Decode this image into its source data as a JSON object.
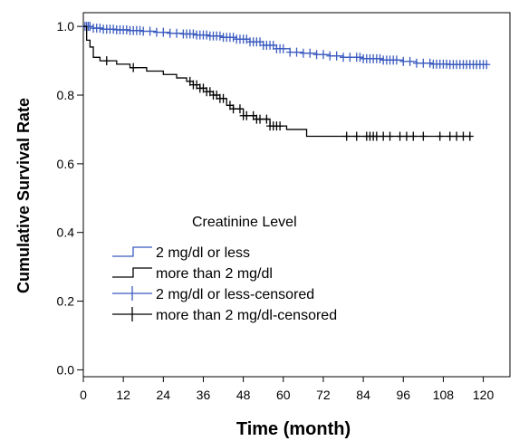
{
  "chart_data": {
    "type": "line",
    "xlabel": "Time (month)",
    "ylabel": "Cumulative Survival Rate",
    "xlim": [
      0,
      128
    ],
    "ylim": [
      -0.02,
      1.04
    ],
    "xticks": [
      0,
      12,
      24,
      36,
      48,
      60,
      72,
      84,
      96,
      108,
      120
    ],
    "yticks": [
      0.0,
      0.2,
      0.4,
      0.6,
      0.8,
      1.0
    ],
    "ytick_labels": [
      "0.0",
      "0.2",
      "0.4",
      "0.6",
      "0.8",
      "1.0"
    ],
    "legend": {
      "title": "Creatinine Level",
      "placement": "center-left",
      "entries": [
        "2 mg/dl or less",
        "more than 2 mg/dl",
        "2 mg/dl or less-censored",
        "more than 2 mg/dl-censored"
      ]
    },
    "series": [
      {
        "name": "2 mg/dl or less",
        "color": "#3b5bbf",
        "step": true,
        "x": [
          0,
          3,
          6,
          10,
          14,
          18,
          22,
          26,
          30,
          34,
          38,
          42,
          46,
          50,
          54,
          58,
          62,
          66,
          70,
          74,
          78,
          84,
          90,
          96,
          100,
          105,
          110,
          115,
          121
        ],
        "y": [
          1.0,
          0.995,
          0.992,
          0.99,
          0.988,
          0.986,
          0.983,
          0.98,
          0.978,
          0.975,
          0.972,
          0.968,
          0.963,
          0.955,
          0.945,
          0.935,
          0.925,
          0.922,
          0.918,
          0.914,
          0.91,
          0.906,
          0.902,
          0.898,
          0.893,
          0.89,
          0.889,
          0.889,
          0.889
        ],
        "censored_x": [
          0.5,
          1,
          1.5,
          2,
          3,
          4,
          5,
          6,
          7,
          8,
          9,
          10,
          11,
          12,
          13,
          14,
          15,
          16,
          17,
          18,
          20,
          22,
          24,
          26,
          28,
          30,
          31,
          32,
          33,
          34,
          35,
          36,
          37,
          38,
          39,
          40,
          41,
          42,
          43,
          44,
          45,
          46,
          47,
          48,
          49,
          50,
          51,
          52,
          53,
          54,
          55,
          56,
          57,
          58,
          59,
          60,
          62,
          64,
          66,
          68,
          70,
          72,
          74,
          76,
          78,
          80,
          82,
          83,
          84,
          85,
          86,
          87,
          88,
          89,
          90,
          91,
          92,
          93,
          94,
          96,
          98,
          100,
          102,
          104,
          105,
          106,
          107,
          108,
          109,
          110,
          111,
          112,
          113,
          114,
          115,
          116,
          117,
          118,
          119,
          120,
          121
        ]
      },
      {
        "name": "more than 2 mg/dl",
        "color": "#000000",
        "step": true,
        "x": [
          0,
          1,
          2,
          3,
          5,
          10,
          14,
          19,
          24,
          28,
          31,
          33,
          35,
          37,
          39,
          41,
          43,
          45,
          48,
          52,
          56,
          61,
          67,
          116
        ],
        "y": [
          1.0,
          0.96,
          0.94,
          0.91,
          0.9,
          0.89,
          0.88,
          0.87,
          0.86,
          0.85,
          0.84,
          0.83,
          0.82,
          0.81,
          0.8,
          0.79,
          0.77,
          0.76,
          0.74,
          0.73,
          0.71,
          0.7,
          0.68,
          0.68
        ],
        "censored_x": [
          7,
          15,
          32,
          33,
          34,
          35,
          36,
          37,
          38,
          39,
          40,
          41,
          42,
          44,
          45,
          47,
          48,
          49,
          51,
          52,
          53,
          55,
          56,
          57,
          58,
          59,
          79,
          82,
          85,
          86,
          87,
          88,
          90,
          92,
          95,
          97,
          99,
          102,
          107,
          110,
          112,
          114,
          116
        ]
      }
    ]
  }
}
